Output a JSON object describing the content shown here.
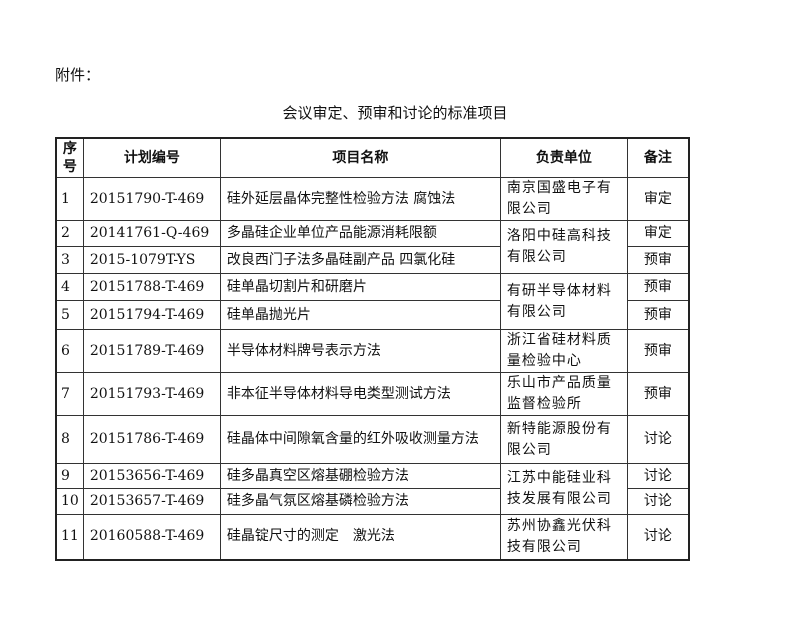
{
  "attachment_label": "附件：",
  "title": "会议审定、预审和讨论的标准项目",
  "table": {
    "headers": [
      "序号",
      "计划编号",
      "项目名称",
      "负责单位",
      "备注"
    ],
    "rows": [
      {
        "no": "1",
        "code": "20151790-T-469",
        "name": "硅外延层晶体完整性检验方法 腐蚀法",
        "unit": "南京国盛电子有限公司",
        "unit_span": 1,
        "note": "审定"
      },
      {
        "no": "2",
        "code": "20141761-Q-469",
        "name": "多晶硅企业单位产品能源消耗限额",
        "unit": "洛阳中硅高科技有限公司",
        "unit_span": 2,
        "note": "审定"
      },
      {
        "no": "3",
        "code": "2015-1079T-YS",
        "name": "改良西门子法多晶硅副产品 四氯化硅",
        "unit": null,
        "note": "预审"
      },
      {
        "no": "4",
        "code": "20151788-T-469",
        "name": "硅单晶切割片和研磨片",
        "unit": "有研半导体材料有限公司",
        "unit_span": 2,
        "note": "预审"
      },
      {
        "no": "5",
        "code": "20151794-T-469",
        "name": "硅单晶抛光片",
        "unit": null,
        "note": "预审"
      },
      {
        "no": "6",
        "code": "20151789-T-469",
        "name": "半导体材料牌号表示方法",
        "unit": "浙江省硅材料质量检验中心",
        "unit_span": 1,
        "note": "预审"
      },
      {
        "no": "7",
        "code": "20151793-T-469",
        "name": "非本征半导体材料导电类型测试方法",
        "unit": "乐山市产品质量监督检验所",
        "unit_span": 1,
        "note": "预审"
      },
      {
        "no": "8",
        "code": "20151786-T-469",
        "name": "硅晶体中间隙氧含量的红外吸收测量方法",
        "unit": "新特能源股份有限公司",
        "unit_span": 1,
        "note": "讨论"
      },
      {
        "no": "9",
        "code": "20153656-T-469",
        "name": "硅多晶真空区熔基硼检验方法",
        "unit": "江苏中能硅业科技发展有限公司",
        "unit_span": 2,
        "note": "讨论"
      },
      {
        "no": "10",
        "code": "20153657-T-469",
        "name": "硅多晶气氛区熔基磷检验方法",
        "unit": null,
        "note": "讨论"
      },
      {
        "no": "11",
        "code": "20160588-T-469",
        "name": "硅晶锭尺寸的测定　激光法",
        "unit": "苏州协鑫光伏科技有限公司",
        "unit_span": 1,
        "note": "讨论"
      }
    ]
  }
}
